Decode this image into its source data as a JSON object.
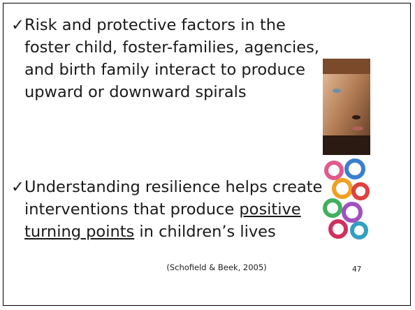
{
  "slide": {
    "bullets": [
      {
        "check": "✓",
        "text": "Risk and protective factors in the foster child, foster-families, agencies, and birth family interact to produce upward or downward spirals"
      },
      {
        "check": "✓",
        "text": "Understanding resilience helps create interventions that produce ",
        "underlined": "positive turning points",
        "text_end": " in children’s lives"
      }
    ],
    "citation": "(Schofield & Beek, 2005)",
    "page_number": "47"
  }
}
